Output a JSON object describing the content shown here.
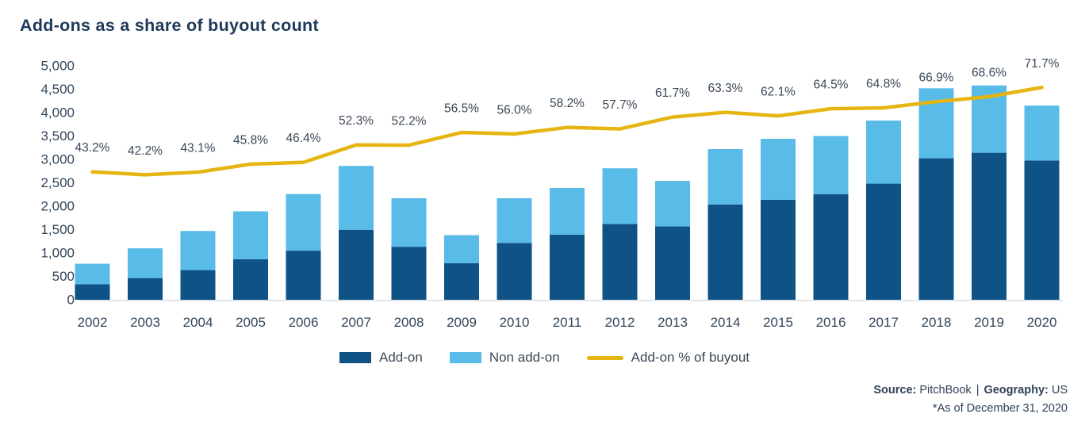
{
  "title": "Add-ons as a share of buyout count",
  "chart_data": {
    "type": "bar",
    "stacked": true,
    "title": "Add-ons as a share of buyout count",
    "categories": [
      "2002",
      "2003",
      "2004",
      "2005",
      "2006",
      "2007",
      "2008",
      "2009",
      "2010",
      "2011",
      "2012",
      "2013",
      "2014",
      "2015",
      "2016",
      "2017",
      "2018",
      "2019",
      "2020"
    ],
    "series": [
      {
        "name": "Add-on",
        "color": "#0f5286",
        "values": [
          333,
          464,
          634,
          866,
          1049,
          1496,
          1133,
          780,
          1215,
          1391,
          1621,
          1567,
          2038,
          2136,
          2258,
          2482,
          3024,
          3142,
          2976
        ]
      },
      {
        "name": "Non add-on",
        "color": "#58bbe8",
        "values": [
          437,
          636,
          836,
          1024,
          1211,
          1364,
          1037,
          600,
          955,
          999,
          1189,
          973,
          1182,
          1304,
          1242,
          1348,
          1496,
          1438,
          1174
        ]
      }
    ],
    "line": {
      "name": "Add-on % of buyout",
      "color": "#e6b511",
      "unit": "percent",
      "values": [
        43.2,
        42.2,
        43.1,
        45.8,
        46.4,
        52.3,
        52.2,
        56.5,
        56.0,
        58.2,
        57.7,
        61.7,
        63.3,
        62.1,
        64.5,
        64.8,
        66.9,
        68.6,
        71.7
      ],
      "labels": [
        "43.2%",
        "42.2%",
        "43.1%",
        "45.8%",
        "46.4%",
        "52.3%",
        "52.2%",
        "56.5%",
        "56.0%",
        "58.2%",
        "57.7%",
        "61.7%",
        "63.3%",
        "62.1%",
        "64.5%",
        "64.8%",
        "66.9%",
        "68.6%",
        "71.7%"
      ]
    },
    "xlabel": "",
    "ylabel": "",
    "ylim": [
      0,
      5000
    ],
    "ytick_step": 500,
    "grid": false,
    "legend_position": "bottom",
    "colors": {
      "axis_text": "#33465a",
      "pct_label_text": "#3a4858",
      "baseline": "#d9dee4"
    }
  },
  "legend": {
    "items": [
      {
        "label": "Add-on",
        "swatch": "bar",
        "color": "#0f5286"
      },
      {
        "label": "Non add-on",
        "swatch": "bar",
        "color": "#58bbe8"
      },
      {
        "label": "Add-on % of buyout",
        "swatch": "line",
        "color": "#e6b511"
      }
    ]
  },
  "footer": {
    "source_label": "Source:",
    "source_value": "PitchBook",
    "divider": "|",
    "geography_label": "Geography:",
    "geography_value": "US",
    "as_of": "*As of December 31, 2020"
  }
}
